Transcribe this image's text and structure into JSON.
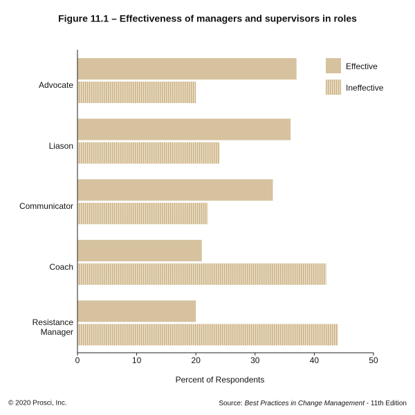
{
  "chart_data": {
    "type": "hbar",
    "title": "Figure 11.1 – Effectiveness of managers and supervisors in roles",
    "categories": [
      "Advocate",
      "Liason",
      "Communicator",
      "Coach",
      "Resistance Manager"
    ],
    "series": [
      {
        "name": "Effective",
        "color": "#d6c29e",
        "pattern": "solid",
        "values": [
          37,
          36,
          33,
          21,
          20
        ]
      },
      {
        "name": "Ineffective",
        "color": "#d6c29e",
        "pattern": "stripes",
        "values": [
          20,
          24,
          22,
          42,
          44
        ]
      }
    ],
    "xlabel": "Percent of Respondents",
    "xlim": [
      0,
      50
    ],
    "xticks": [
      0,
      10,
      20,
      30,
      40,
      50
    ],
    "grid": false,
    "legend": "top-right"
  },
  "footer": {
    "copyright": "© 2020 Prosci, Inc.",
    "source_prefix": "Source: ",
    "source_title": "Best Practices in Change Management",
    "source_suffix": " - 11th Edition"
  }
}
